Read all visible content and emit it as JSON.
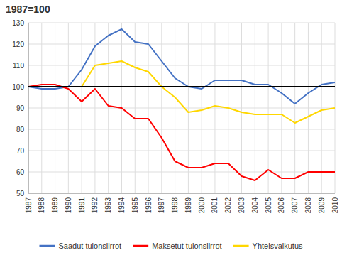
{
  "chart_data": {
    "type": "line",
    "title": "1987=100",
    "x": [
      1987,
      1988,
      1989,
      1990,
      1991,
      1992,
      1993,
      1994,
      1995,
      1996,
      1997,
      1998,
      1999,
      2000,
      2001,
      2002,
      2003,
      2004,
      2005,
      2006,
      2007,
      2008,
      2009,
      2010
    ],
    "series": [
      {
        "name": "Saadut tulonsiirrot",
        "color": "#4472C4",
        "values": [
          100,
          99,
          99,
          100,
          108,
          119,
          124,
          127,
          121,
          120,
          112,
          104,
          100,
          99,
          103,
          103,
          103,
          101,
          101,
          97,
          92,
          97,
          101,
          102
        ]
      },
      {
        "name": "Maksetut tulonsiirrot",
        "color": "#FF0000",
        "values": [
          100,
          101,
          101,
          99,
          93,
          99,
          91,
          90,
          85,
          85,
          76,
          65,
          62,
          62,
          64,
          64,
          58,
          56,
          61,
          57,
          57,
          60,
          60,
          60
        ]
      },
      {
        "name": "Yhteisvaikutus",
        "color": "#FFD700",
        "values": [
          100,
          100,
          100,
          100,
          100,
          110,
          111,
          112,
          109,
          107,
          100,
          95,
          88,
          89,
          91,
          90,
          88,
          87,
          87,
          87,
          83,
          86,
          89,
          90
        ]
      }
    ],
    "reference_line": {
      "value": 100,
      "color": "#000000"
    },
    "xlim": [
      1987,
      2010
    ],
    "xticks": [
      1987,
      1988,
      1989,
      1990,
      1991,
      1992,
      1993,
      1994,
      1995,
      1996,
      1997,
      1998,
      1999,
      2000,
      2001,
      2002,
      2003,
      2004,
      2005,
      2006,
      2007,
      2008,
      2009,
      2010
    ],
    "ylim": [
      50,
      130
    ],
    "yticks": [
      50,
      60,
      70,
      80,
      90,
      100,
      110,
      120,
      130
    ],
    "grid": true,
    "legend": "bottom"
  }
}
